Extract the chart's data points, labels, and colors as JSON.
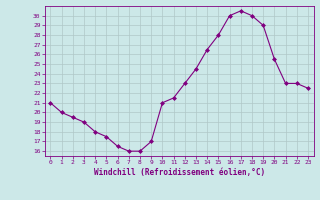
{
  "x": [
    0,
    1,
    2,
    3,
    4,
    5,
    6,
    7,
    8,
    9,
    10,
    11,
    12,
    13,
    14,
    15,
    16,
    17,
    18,
    19,
    20,
    21,
    22,
    23
  ],
  "y": [
    21,
    20,
    19.5,
    19,
    18,
    17.5,
    16.5,
    16,
    16,
    17,
    21,
    21.5,
    23,
    24.5,
    26.5,
    28,
    30,
    30.5,
    30,
    29,
    25.5,
    23,
    23,
    22.5
  ],
  "line_color": "#800080",
  "marker": "D",
  "marker_size": 2,
  "bg_color": "#cce8e8",
  "grid_color": "#b0c8c8",
  "xlabel": "Windchill (Refroidissement éolien,°C)",
  "ylabel_ticks": [
    16,
    17,
    18,
    19,
    20,
    21,
    22,
    23,
    24,
    25,
    26,
    27,
    28,
    29,
    30
  ],
  "xlim": [
    -0.5,
    23.5
  ],
  "ylim": [
    15.5,
    31
  ],
  "tick_fontsize": 4.5,
  "xlabel_fontsize": 5.5
}
